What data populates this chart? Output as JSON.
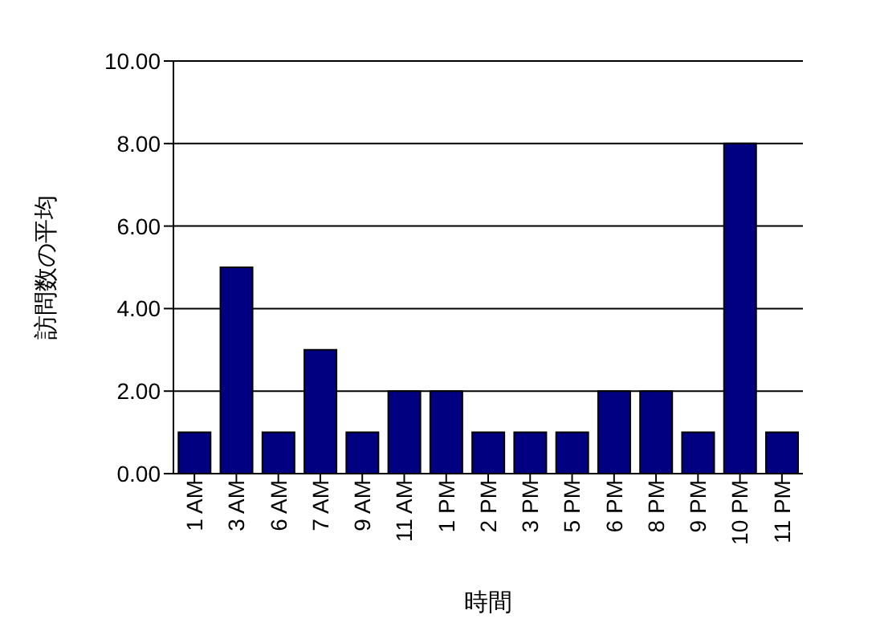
{
  "chart_data": {
    "type": "bar",
    "xlabel": "時間",
    "ylabel": "訪問数の平均",
    "categories": [
      "1 AM",
      "3 AM",
      "6 AM",
      "7 AM",
      "9 AM",
      "11 AM",
      "1 PM",
      "2 PM",
      "3 PM",
      "5 PM",
      "6 PM",
      "8 PM",
      "9 PM",
      "10 PM",
      "11 PM"
    ],
    "values": [
      1,
      5,
      1,
      3,
      1,
      2,
      2,
      1,
      1,
      1,
      2,
      2,
      1,
      8,
      1
    ],
    "color": "#000080",
    "ylim": [
      0,
      10
    ],
    "yticks": [
      {
        "value": 0,
        "label": "0.00"
      },
      {
        "value": 2,
        "label": "2.00"
      },
      {
        "value": 4,
        "label": "4.00"
      },
      {
        "value": 6,
        "label": "6.00"
      },
      {
        "value": 8,
        "label": "8.00"
      },
      {
        "value": 10,
        "label": "10.00"
      }
    ],
    "grid": "y"
  }
}
